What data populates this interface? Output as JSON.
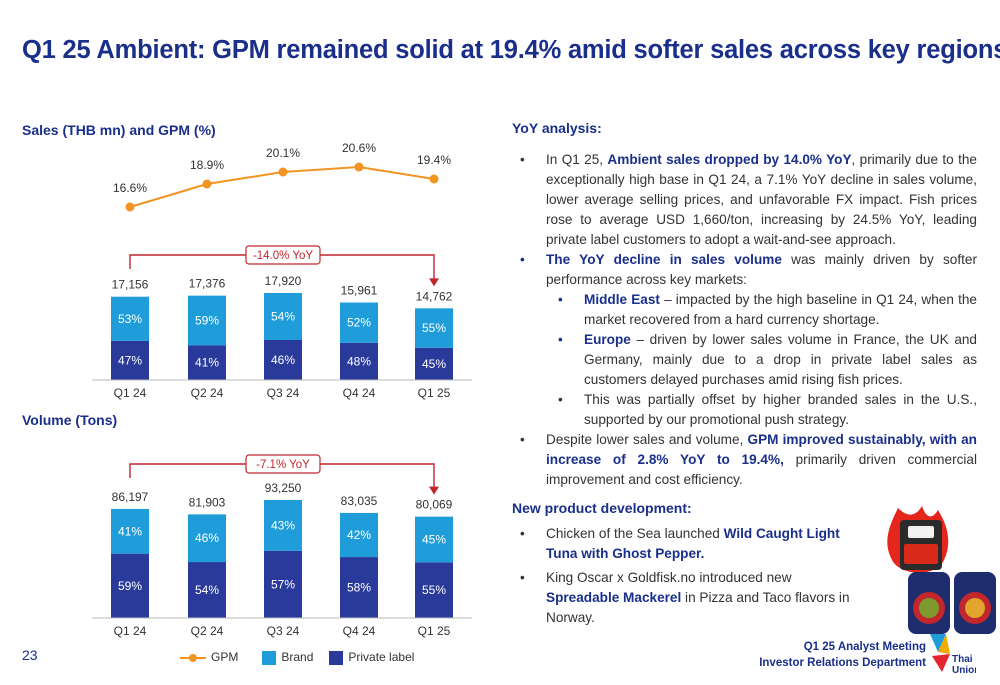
{
  "title": "Q1 25 Ambient: GPM remained solid at 19.4% amid softer sales across key regions",
  "page_number": "23",
  "colors": {
    "brand_blue": "#1a2f8a",
    "brand_light": "#1f9ddb",
    "private_label": "#2a3a9b",
    "gpm_orange": "#f29422"
  },
  "sales_chart_label": "Sales (THB mn) and GPM (%)",
  "volume_chart_label": "Volume (Tons)",
  "chart_data": [
    {
      "type": "bar",
      "title": "Sales (THB mn) and GPM (%)",
      "categories": [
        "Q1 24",
        "Q2 24",
        "Q3 24",
        "Q4 24",
        "Q1 25"
      ],
      "totals": [
        17156,
        17376,
        17920,
        15961,
        14762
      ],
      "total_labels": [
        "17,156",
        "17,376",
        "17,920",
        "15,961",
        "14,762"
      ],
      "series": [
        {
          "name": "Private label",
          "values": [
            47,
            41,
            46,
            48,
            45
          ],
          "labels": [
            "47%",
            "41%",
            "46%",
            "48%",
            "45%"
          ]
        },
        {
          "name": "Brand",
          "values": [
            53,
            59,
            54,
            52,
            55
          ],
          "labels": [
            "53%",
            "59%",
            "54%",
            "52%",
            "55%"
          ]
        }
      ],
      "line": {
        "name": "GPM",
        "values": [
          16.6,
          18.9,
          20.1,
          20.6,
          19.4
        ],
        "labels": [
          "16.6%",
          "18.9%",
          "20.1%",
          "20.6%",
          "19.4%"
        ]
      },
      "annotation": "-14.0% YoY"
    },
    {
      "type": "bar",
      "title": "Volume (Tons)",
      "categories": [
        "Q1 24",
        "Q2 24",
        "Q3 24",
        "Q4 24",
        "Q1 25"
      ],
      "totals": [
        86197,
        81903,
        93250,
        83035,
        80069
      ],
      "total_labels": [
        "86,197",
        "81,903",
        "93,250",
        "83,035",
        "80,069"
      ],
      "series": [
        {
          "name": "Private label",
          "values": [
            59,
            54,
            57,
            58,
            55
          ],
          "labels": [
            "59%",
            "54%",
            "57%",
            "58%",
            "55%"
          ]
        },
        {
          "name": "Brand",
          "values": [
            41,
            46,
            43,
            42,
            45
          ],
          "labels": [
            "41%",
            "46%",
            "43%",
            "42%",
            "45%"
          ]
        }
      ],
      "annotation": "-7.1% YoY"
    }
  ],
  "legend": {
    "gpm": "GPM",
    "brand": "Brand",
    "private_label": "Private label"
  },
  "yoy": {
    "heading": "YoY analysis:",
    "b1_pre": "In Q1 25, ",
    "b1_bold": "Ambient sales dropped by 14.0% YoY",
    "b1_post": ", primarily due to the exceptionally high base in Q1 24, a 7.1% YoY decline in sales volume, lower average selling prices, and unfavorable FX impact. Fish prices rose to average USD 1,660/ton, increasing by 24.5% YoY, leading private label customers to adopt a wait-and-see approach.",
    "b2_bold": "The YoY decline in sales volume",
    "b2_post": " was mainly driven by softer performance across key markets:",
    "s1_bold": "Middle East",
    "s1_post": " – impacted by the high baseline in Q1 24, when the market recovered from a hard currency shortage.",
    "s2_bold": "Europe",
    "s2_post": " – driven by lower sales volume in France, the UK and Germany, mainly due to a drop in private label sales as customers delayed purchases amid rising fish prices.",
    "s3": "This was partially offset by higher branded sales in the U.S., supported by our promotional push strategy.",
    "b3_pre": "Despite lower sales and volume, ",
    "b3_bold": "GPM improved sustainably, with an increase of 2.8% YoY to 19.4%,",
    "b3_post": " primarily driven commercial improvement and cost efficiency."
  },
  "npd": {
    "heading": "New product development:",
    "p1_pre": "Chicken of the Sea launched ",
    "p1_bold": "Wild Caught Light Tuna with Ghost Pepper.",
    "p2_pre": "King Oscar x Goldfisk.no introduced new ",
    "p2_bold": "Spreadable Mackerel",
    "p2_post": " in Pizza and Taco flavors in Norway."
  },
  "footer": {
    "line1": "Q1 25 Analyst Meeting",
    "line2": "Investor Relations Department"
  },
  "logo_text": {
    "line1": "Thai",
    "line2": "Union"
  }
}
